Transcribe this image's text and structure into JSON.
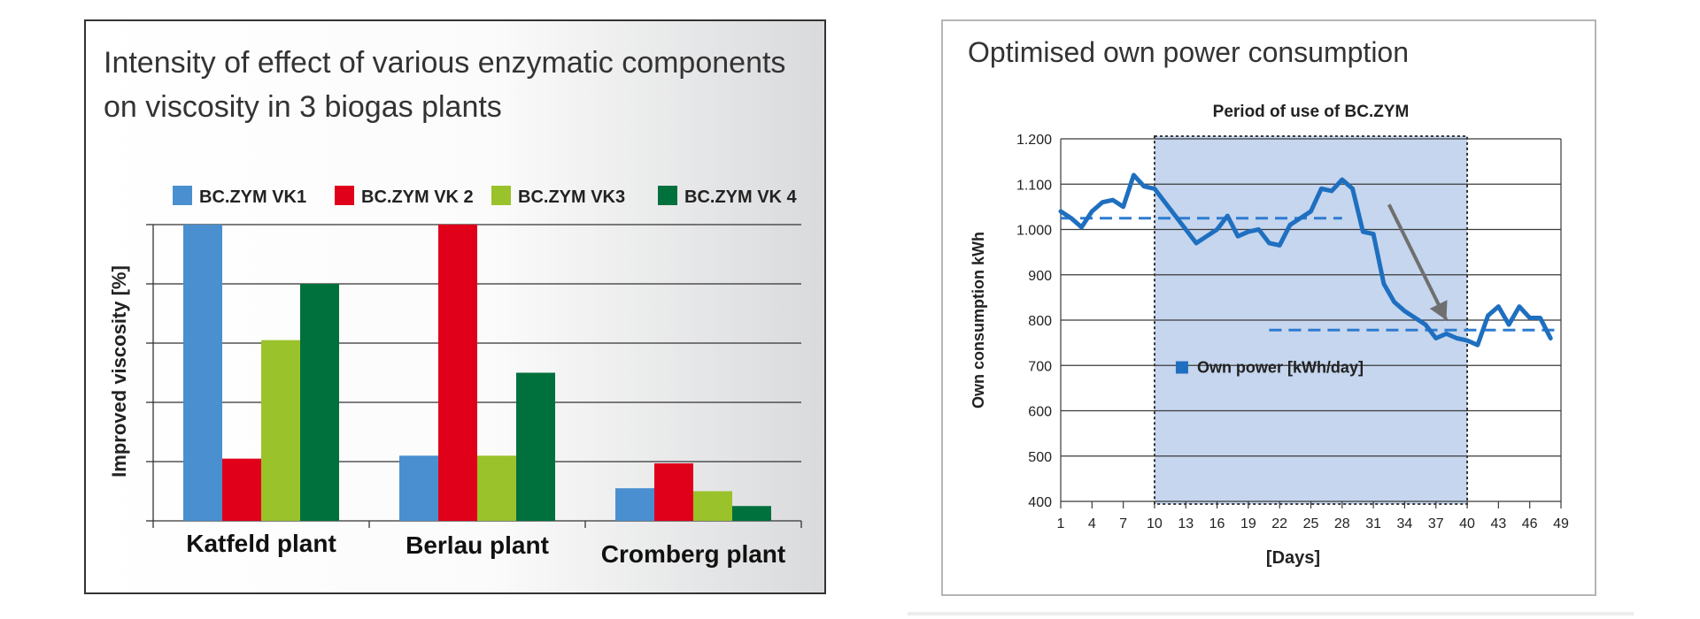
{
  "chart_data": [
    {
      "type": "bar",
      "title_lines": [
        "Intensity of effect of various enzymatic components",
        "on viscosity in 3 biogas plants"
      ],
      "ylabel": "Improved viscosity [%]",
      "xlabel": "",
      "ylim": [
        0,
        5
      ],
      "categories": [
        "Katfeld plant",
        "Berlau plant",
        "Cromberg plant"
      ],
      "series": [
        {
          "name": "BC.ZYM VK1",
          "color": "#4a8fcf",
          "values": [
            5.0,
            1.1,
            0.55
          ]
        },
        {
          "name": "BC.ZYM VK 2",
          "color": "#e0001a",
          "values": [
            1.05,
            5.0,
            0.97
          ]
        },
        {
          "name": "BC.ZYM VK3",
          "color": "#9ac22a",
          "values": [
            3.05,
            1.1,
            0.5
          ]
        },
        {
          "name": "BC.ZYM VK 4",
          "color": "#00703c",
          "values": [
            4.0,
            2.5,
            0.25
          ]
        }
      ],
      "grid": true,
      "legend": "top"
    },
    {
      "type": "line",
      "title": "Optimised own power consumption",
      "xlabel": "[Days]",
      "ylabel": "Own consumption kWh",
      "ylim": [
        400,
        1200
      ],
      "yticks": [
        "400",
        "500",
        "600",
        "700",
        "800",
        "900",
        "1.000",
        "1.100",
        "1.200"
      ],
      "xlim": [
        1,
        49
      ],
      "xticks": [
        "1",
        "4",
        "7",
        "10",
        "13",
        "16",
        "19",
        "22",
        "25",
        "28",
        "31",
        "34",
        "37",
        "40",
        "43",
        "46",
        "49"
      ],
      "period_label": "Period of use of BC.ZYM",
      "period_range": [
        10,
        40
      ],
      "series": [
        {
          "name": "Own power [kWh/day]",
          "color": "#1f6fc0",
          "x": [
            1,
            2,
            3,
            4,
            5,
            6,
            7,
            8,
            9,
            10,
            11,
            12,
            13,
            14,
            15,
            16,
            17,
            18,
            19,
            20,
            21,
            22,
            23,
            24,
            25,
            26,
            27,
            28,
            29,
            30,
            31,
            32,
            33,
            34,
            35,
            36,
            37,
            38,
            39,
            40,
            41,
            42,
            43,
            44,
            45,
            46,
            47,
            48
          ],
          "y": [
            1040,
            1025,
            1005,
            1040,
            1060,
            1065,
            1050,
            1120,
            1095,
            1090,
            1060,
            1030,
            1000,
            970,
            985,
            1000,
            1030,
            985,
            995,
            1000,
            970,
            965,
            1010,
            1025,
            1040,
            1090,
            1085,
            1110,
            1090,
            995,
            990,
            880,
            840,
            820,
            805,
            790,
            760,
            770,
            760,
            755,
            745,
            810,
            830,
            790,
            830,
            805,
            805,
            760
          ]
        }
      ],
      "reference_lines": [
        {
          "value": 1025,
          "x_range": [
            1,
            28
          ]
        },
        {
          "value": 778,
          "x_range": [
            21,
            49
          ]
        }
      ],
      "legend": "inside-left"
    }
  ]
}
